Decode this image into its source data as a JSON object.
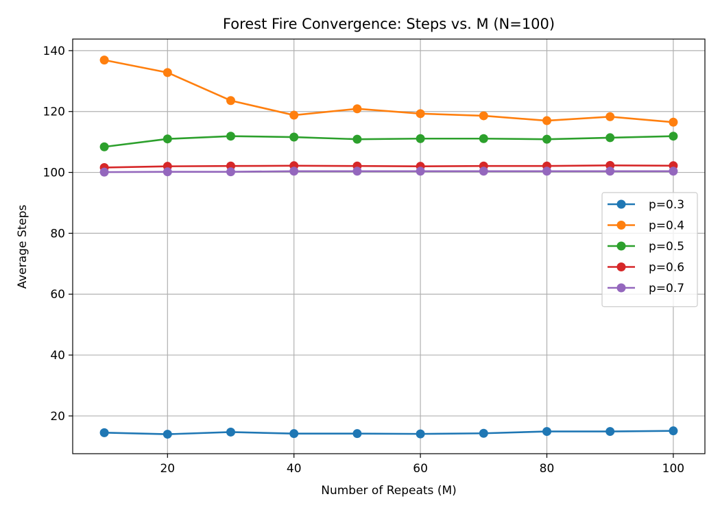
{
  "chart_data": {
    "type": "line",
    "title": "Forest Fire Convergence: Steps vs. M (N=100)",
    "xlabel": "Number of Repeats (M)",
    "ylabel": "Average Steps",
    "x": [
      10,
      20,
      30,
      40,
      50,
      60,
      70,
      80,
      90,
      100
    ],
    "xlim": [
      5,
      105
    ],
    "ylim": [
      7.6,
      143.8
    ],
    "xticks": [
      20,
      40,
      60,
      80,
      100
    ],
    "yticks": [
      20,
      40,
      60,
      80,
      100,
      120,
      140
    ],
    "xtick_labels": [
      "20",
      "40",
      "60",
      "80",
      "100"
    ],
    "ytick_labels": [
      "20",
      "40",
      "60",
      "80",
      "100",
      "120",
      "140"
    ],
    "grid": true,
    "legend_position": "center-right",
    "series": [
      {
        "name": "p=0.3",
        "color": "#1f77b4",
        "values": [
          14.5,
          14.0,
          14.7,
          14.2,
          14.2,
          14.1,
          14.3,
          14.9,
          14.9,
          15.1
        ]
      },
      {
        "name": "p=0.4",
        "color": "#ff7f0e",
        "values": [
          136.9,
          132.8,
          123.6,
          118.8,
          120.9,
          119.3,
          118.6,
          117.0,
          118.3,
          116.5
        ]
      },
      {
        "name": "p=0.5",
        "color": "#2ca02c",
        "values": [
          108.4,
          111.0,
          111.9,
          111.6,
          110.9,
          111.1,
          111.1,
          110.9,
          111.4,
          111.9
        ]
      },
      {
        "name": "p=0.6",
        "color": "#d62728",
        "values": [
          101.6,
          102.0,
          102.1,
          102.2,
          102.1,
          102.0,
          102.1,
          102.1,
          102.3,
          102.2
        ]
      },
      {
        "name": "p=0.7",
        "color": "#9467bd",
        "values": [
          100.1,
          100.2,
          100.2,
          100.4,
          100.4,
          100.4,
          100.4,
          100.4,
          100.4,
          100.4
        ]
      }
    ]
  }
}
